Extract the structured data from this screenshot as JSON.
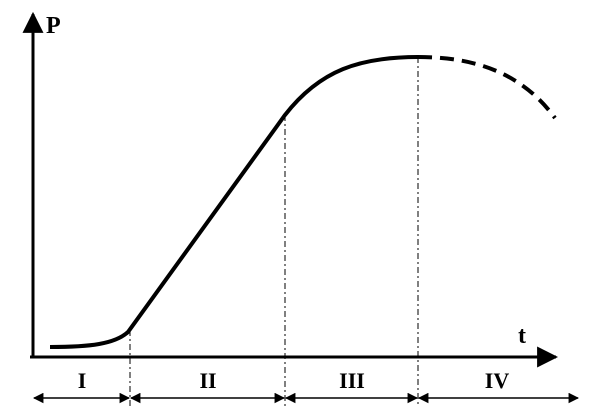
{
  "axes": {
    "y_label": "P",
    "x_label": "t"
  },
  "phases": [
    {
      "label": "I"
    },
    {
      "label": "II"
    },
    {
      "label": "III"
    },
    {
      "label": "IV"
    }
  ]
}
